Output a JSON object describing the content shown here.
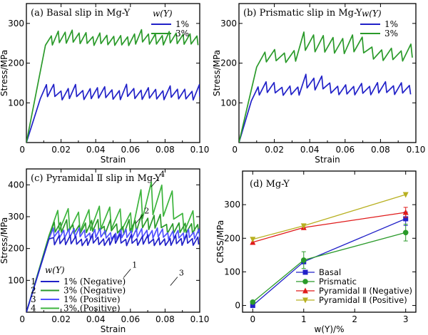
{
  "chart_data": [
    {
      "type": "line",
      "panel": "a",
      "title": "(a) Basal slip in Mg-Y",
      "xlabel": "Strain",
      "ylabel": "Stress/MPa",
      "xlim": [
        0,
        0.1
      ],
      "ylim": [
        0,
        350
      ],
      "xticks": [
        "0",
        "0.02",
        "0.04",
        "0.06",
        "0.08",
        "0.10"
      ],
      "yticks": [
        "100",
        "200",
        "300"
      ],
      "legend_title": "w(Y)",
      "series": [
        {
          "name": "1%",
          "color": "#2121c8",
          "elastic_end": [
            0.008,
            110
          ],
          "mean": 125,
          "amp": 22,
          "period": 0.0042,
          "x_end": 0.1
        },
        {
          "name": "3%",
          "color": "#2a9a2a",
          "elastic_end": [
            0.011,
            245
          ],
          "mean": 262,
          "amp": 22,
          "period": 0.004,
          "x_end": 0.1
        }
      ]
    },
    {
      "type": "line",
      "panel": "b",
      "title": "(b) Prismatic slip in Mg-Y",
      "xlabel": "Strain",
      "ylabel": "Stress/MPa",
      "xlim": [
        0,
        0.1
      ],
      "ylim": [
        0,
        350
      ],
      "xticks": [
        "0",
        "0.02",
        "0.04",
        "0.06",
        "0.08",
        "0.10"
      ],
      "yticks": [
        "100",
        "200",
        "300"
      ],
      "legend_title": "w(Y)",
      "series": [
        {
          "name": "1%",
          "color": "#2121c8",
          "elastic_end": [
            0.007,
            105
          ],
          "mean": 135,
          "amp": 20,
          "period": 0.0045,
          "x_end": 0.1
        },
        {
          "name": "3%",
          "color": "#2a9a2a",
          "elastic_end": [
            0.01,
            190
          ],
          "mean": 225,
          "amp": 25,
          "period": 0.0055,
          "x_end": 0.1
        }
      ]
    },
    {
      "type": "line",
      "panel": "c",
      "title": "(c) Pyramidal Ⅱ slip in Mg-Y",
      "xlabel": "Strain",
      "ylabel": "Stress/MPa",
      "xlim": [
        0,
        0.1
      ],
      "ylim": [
        0,
        450
      ],
      "xticks": [
        "0",
        "0.02",
        "0.04",
        "0.06",
        "0.08",
        "0.10"
      ],
      "yticks": [
        "100",
        "200",
        "300",
        "400"
      ],
      "legend_title": "w(Y)",
      "series": [
        {
          "name": "1%  (Negative)",
          "label": "1",
          "color": "#2121c8",
          "elastic_end": [
            0.013,
            230
          ],
          "mean": 225,
          "amp": 20,
          "period": 0.0032,
          "x_end": 0.1
        },
        {
          "name": "3%  (Negative)",
          "label": "2",
          "color": "#2a9a2a",
          "elastic_end": [
            0.013,
            235
          ],
          "mean": 265,
          "amp": 25,
          "period": 0.0036,
          "x_end": 0.1
        },
        {
          "name": "1%  (Positive)",
          "label": "3",
          "color": "#5050ff",
          "elastic_end": [
            0.013,
            230
          ],
          "mean": 245,
          "amp": 20,
          "period": 0.003,
          "x_end": 0.1
        },
        {
          "name": "3%  (Positive)",
          "label": "4",
          "color": "#3cb43c",
          "elastic_end": [
            0.013,
            240
          ],
          "mean": 300,
          "amp": 60,
          "period": 0.006,
          "x_end": 0.1
        }
      ],
      "annotations": [
        {
          "text": "4",
          "x": 0.077,
          "y": 425
        },
        {
          "text": "2",
          "x": 0.068,
          "y": 310
        },
        {
          "text": "1",
          "x": 0.061,
          "y": 140
        },
        {
          "text": "3",
          "x": 0.088,
          "y": 115
        }
      ]
    },
    {
      "type": "line",
      "panel": "d",
      "title": "(d) Mg-Y",
      "xlabel": "w(Y)/%",
      "ylabel": "CRSS/MPa",
      "xlim": [
        -0.2,
        3.2
      ],
      "ylim": [
        -20,
        400
      ],
      "xticks": [
        "0",
        "1",
        "2",
        "3"
      ],
      "x_tick_values": [
        0,
        1,
        2,
        3
      ],
      "yticks": [
        "0",
        "100",
        "200",
        "300"
      ],
      "legend_placement": "bottom-right",
      "x": [
        0,
        1,
        3
      ],
      "series": [
        {
          "name": "Basal",
          "color": "#2121c8",
          "marker": "square",
          "values": [
            0,
            130,
            258
          ],
          "err": [
            0,
            0,
            20
          ]
        },
        {
          "name": "Prismatic",
          "color": "#2a9a2a",
          "marker": "circle",
          "values": [
            10,
            135,
            217
          ],
          "err": [
            0,
            25,
            25
          ]
        },
        {
          "name": "Pyramidal Ⅱ (Negative)",
          "color": "#e01a1a",
          "marker": "triangle-up",
          "values": [
            188,
            232,
            277
          ],
          "err": [
            0,
            0,
            15
          ]
        },
        {
          "name": "Pyramidal Ⅱ (Positive)",
          "color": "#b8b020",
          "marker": "triangle-down",
          "values": [
            197,
            237,
            330
          ],
          "err": [
            0,
            0,
            0
          ]
        }
      ]
    }
  ]
}
